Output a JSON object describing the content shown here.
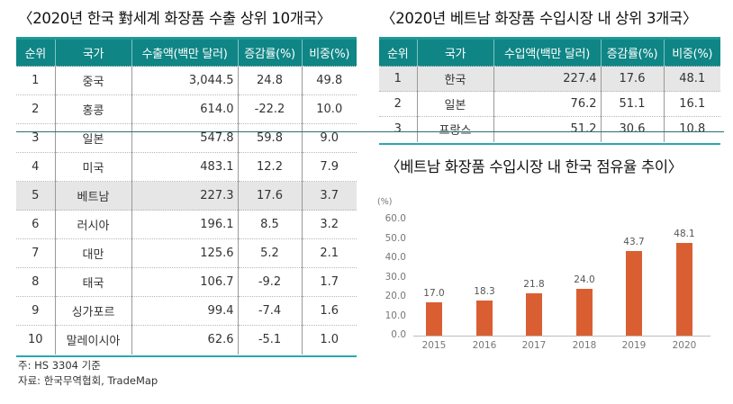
{
  "left_panel": {
    "title": "〈2020년 한국 對세계 화장품 수출 상위 10개국〉",
    "headers": [
      "순위",
      "국가",
      "수출액(백만 달러)",
      "증감률(%)",
      "비중(%)"
    ],
    "rows": [
      [
        "1",
        "중국",
        "3,044.5",
        "24.8",
        "49.8"
      ],
      [
        "2",
        "홍콩",
        "614.0",
        "-22.2",
        "10.0"
      ],
      [
        "3",
        "일본",
        "547.8",
        "59.8",
        "9.0"
      ],
      [
        "4",
        "미국",
        "483.1",
        "12.2",
        "7.9"
      ],
      [
        "5",
        "베트남",
        "227.3",
        "17.6",
        "3.7"
      ],
      [
        "6",
        "러시아",
        "196.1",
        "8.5",
        "3.2"
      ],
      [
        "7",
        "대만",
        "125.6",
        "5.2",
        "2.1"
      ],
      [
        "8",
        "태국",
        "106.7",
        "-9.2",
        "1.7"
      ],
      [
        "9",
        "싱가포르",
        "99.4",
        "-7.4",
        "1.6"
      ],
      [
        "10",
        "말레이시아",
        "62.6",
        "-5.1",
        "1.0"
      ]
    ],
    "highlight_row": 5,
    "note": "주: HS 3304 기준",
    "source": "자료: 한국무역협회, TradeMap"
  },
  "right_panel": {
    "title": "〈2020년 베트남 화장품 수입시장 내 상위 3개국〉",
    "headers": [
      "순위",
      "국가",
      "수입액(백만 달러)",
      "증감률(%)",
      "비중(%)"
    ],
    "rows": [
      [
        "1",
        "한국",
        "227.4",
        "17.6",
        "48.1"
      ],
      [
        "2",
        "일본",
        "76.2",
        "51.1",
        "16.1"
      ],
      [
        "3",
        "프랑스",
        "51.2",
        "30.6",
        "10.8"
      ]
    ],
    "highlight_row": 1
  },
  "colors": {
    "header_teal": "#0f8585",
    "bar_orange": "#d95f33",
    "highlight_gray": "#e6e6e6"
  },
  "chart_data": {
    "type": "bar",
    "title": "〈베트남 화장품 수입시장 내 한국 점유율 추이〉",
    "unit_label": "(%)",
    "categories": [
      "2015",
      "2016",
      "2017",
      "2018",
      "2019",
      "2020"
    ],
    "values": [
      17.0,
      18.3,
      21.8,
      24.0,
      43.7,
      48.1
    ],
    "value_labels": [
      "17.0",
      "18.3",
      "21.8",
      "24.0",
      "43.7",
      "48.1"
    ],
    "y_ticks": [
      "0.0",
      "10.0",
      "20.0",
      "30.0",
      "40.0",
      "50.0",
      "60.0"
    ],
    "xlabel": "",
    "ylabel": "(%)",
    "ylim": [
      0,
      60
    ],
    "grid": false,
    "legend": null
  }
}
